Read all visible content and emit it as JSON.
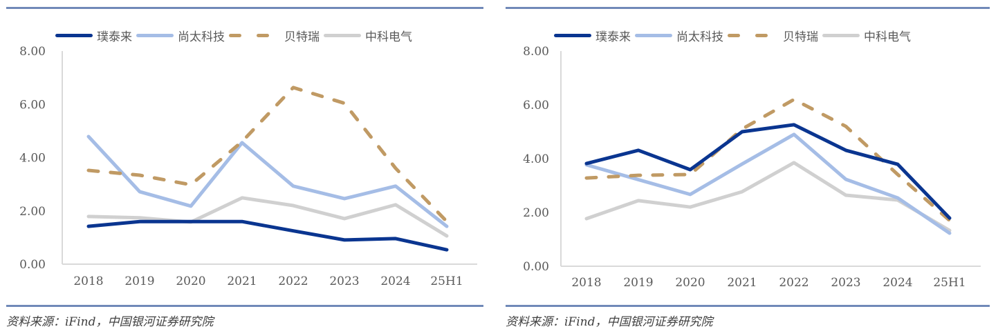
{
  "source_note": "资料来源：iFind，中国银河证券研究院",
  "series_styles": [
    {
      "name": "璞泰来",
      "color": "#0a3590",
      "dash": false
    },
    {
      "name": "尚太科技",
      "color": "#a5bde6",
      "dash": false
    },
    {
      "name": "贝特瑞",
      "color": "#c09a64",
      "dash": true
    },
    {
      "name": "中科电气",
      "color": "#d0d0d0",
      "dash": false
    }
  ],
  "rule_color": "#7089b8",
  "chart_data": [
    {
      "type": "line",
      "title": "",
      "xlabel": "",
      "ylabel": "",
      "categories": [
        "2018",
        "2019",
        "2020",
        "2021",
        "2022",
        "2023",
        "2024",
        "25H1"
      ],
      "ylim": [
        0,
        8
      ],
      "yticks": [
        "0.00",
        "2.00",
        "4.00",
        "6.00",
        "8.00"
      ],
      "grid": false,
      "legend_position": "top",
      "series": [
        {
          "name": "璞泰来",
          "values": [
            1.42,
            1.6,
            1.6,
            1.6,
            1.25,
            0.91,
            0.96,
            0.54
          ]
        },
        {
          "name": "尚太科技",
          "values": [
            4.79,
            2.72,
            2.18,
            4.56,
            2.93,
            2.46,
            2.93,
            1.42
          ]
        },
        {
          "name": "贝特瑞",
          "values": [
            3.52,
            3.34,
            2.98,
            4.6,
            6.63,
            6.04,
            3.6,
            1.6
          ]
        },
        {
          "name": "中科电气",
          "values": [
            1.79,
            1.74,
            1.58,
            2.49,
            2.2,
            1.71,
            2.23,
            1.06
          ]
        }
      ]
    },
    {
      "type": "line",
      "title": "",
      "xlabel": "",
      "ylabel": "",
      "categories": [
        "2018",
        "2019",
        "2020",
        "2021",
        "2022",
        "2023",
        "2024",
        "25H1"
      ],
      "ylim": [
        0,
        8
      ],
      "yticks": [
        "0.00",
        "2.00",
        "4.00",
        "6.00",
        "8.00"
      ],
      "grid": false,
      "legend_position": "top",
      "series": [
        {
          "name": "璞泰来",
          "values": [
            3.82,
            4.31,
            3.59,
            5.0,
            5.26,
            4.31,
            3.79,
            1.79
          ]
        },
        {
          "name": "尚太科技",
          "values": [
            3.77,
            3.22,
            2.67,
            3.8,
            4.9,
            3.23,
            2.54,
            1.23
          ]
        },
        {
          "name": "贝特瑞",
          "values": [
            3.28,
            3.38,
            3.41,
            5.1,
            6.2,
            5.2,
            3.41,
            1.7
          ]
        },
        {
          "name": "中科电气",
          "values": [
            1.77,
            2.44,
            2.2,
            2.77,
            3.85,
            2.64,
            2.46,
            1.33
          ]
        }
      ]
    }
  ]
}
